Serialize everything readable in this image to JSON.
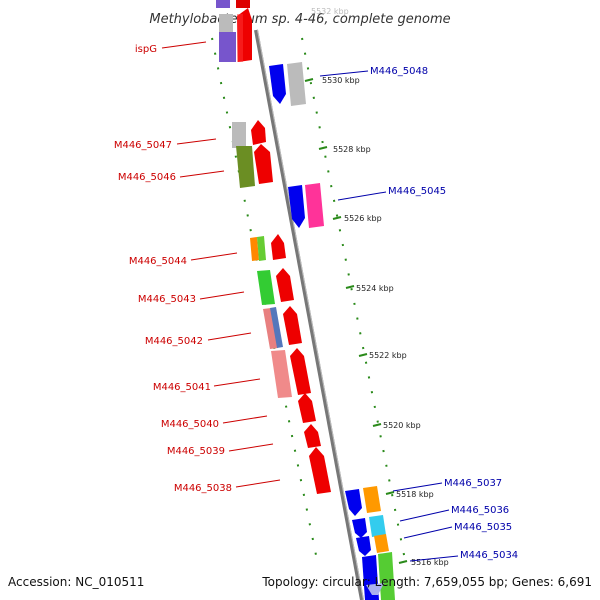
{
  "title": "Methylobacterium sp. 4-46, complete genome",
  "footer": {
    "accession": "Accession: NC_010511",
    "summary": "Topology: circular; Length: 7,659,055 bp; Genes: 6,691"
  },
  "colors": {
    "backbone": "#888888",
    "tick": "#2a8a1a",
    "forward_label": "#cc0000",
    "reverse_label": "#0000aa"
  },
  "scale_labels": [
    "5532 kbp",
    "5530 kbp",
    "5528 kbp",
    "5526 kbp",
    "5524 kbp",
    "5522 kbp",
    "5520 kbp",
    "5518 kbp",
    "5516 kbp"
  ],
  "forward_labels": [
    "ispG",
    "M446_5047",
    "M446_5046",
    "M446_5044",
    "M446_5043",
    "M446_5042",
    "M446_5041",
    "M446_5040",
    "M446_5039",
    "M446_5038"
  ],
  "reverse_labels": [
    "M446_5048",
    "M446_5045",
    "M446_5037",
    "M446_5036",
    "M446_5035",
    "M446_5034"
  ]
}
